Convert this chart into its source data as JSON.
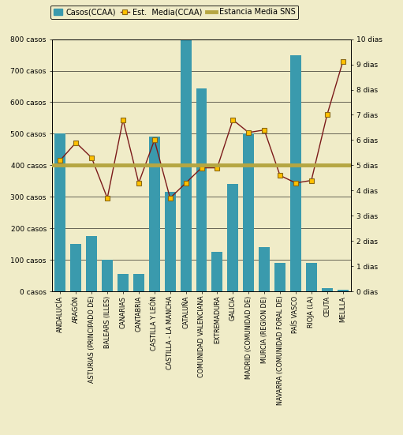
{
  "categories": [
    "ANDALUCÍA",
    "ARAGÓN",
    "ASTURIAS (PRINCIPADO DE)",
    "BALEARS (ILLES)",
    "CANARIAS",
    "CANTABRIA",
    "CASTILLA Y LEÓN",
    "CASTILLA - LA MANCHA",
    "CATALUÑA",
    "COMUNIDAD VALENCIANA",
    "EXTREMADURA",
    "GALICIA",
    "MADRID (COMUNIDAD DE)",
    "MURCIA (REGION DE)",
    "NAVARRA (COMUNIDAD FORAL DE)",
    "PAÍS VASCO",
    "RIOJA (LA)",
    "CEUTA",
    "MELILLA"
  ],
  "bar_values": [
    500,
    150,
    175,
    100,
    55,
    55,
    490,
    315,
    800,
    645,
    125,
    340,
    500,
    140,
    90,
    750,
    90,
    10,
    5
  ],
  "line_values": [
    5.2,
    5.9,
    5.3,
    3.7,
    6.8,
    4.3,
    6.0,
    3.7,
    4.3,
    4.9,
    4.9,
    6.8,
    6.3,
    6.4,
    4.6,
    4.3,
    4.4,
    7.0,
    9.1
  ],
  "sns_value": 5.0,
  "bar_color": "#3a9aad",
  "line_color": "#7b1a1a",
  "line_marker_color": "#ffc000",
  "line_marker_edge": "#8B6914",
  "sns_color": "#b5a642",
  "background_color": "#f0ecc8",
  "plot_bg_color": "#f0ecc8",
  "ylim_left": [
    0,
    800
  ],
  "ylim_right": [
    0,
    10
  ],
  "yticks_left": [
    0,
    100,
    200,
    300,
    400,
    500,
    600,
    700,
    800
  ],
  "yticks_right": [
    0,
    1,
    2,
    3,
    4,
    5,
    6,
    7,
    8,
    9,
    10
  ],
  "ytick_labels_left": [
    "0 casos",
    "100 casos",
    "200 casos",
    "300 casos",
    "400 casos",
    "500 casos",
    "600 casos",
    "700 casos",
    "800 casos"
  ],
  "ytick_labels_right": [
    "0 dias",
    "1 dias",
    "2 dias",
    "3 dias",
    "4 dias",
    "5 dias",
    "6 dias",
    "7 dias",
    "8 dias",
    "9 dias",
    "10 dias"
  ],
  "legend_bar_label": "Casos(CCAA)",
  "legend_line_label": "Est.  Media(CCAA)",
  "legend_sns_label": "Estancia Media SNS",
  "figsize": [
    5.11,
    5.51
  ],
  "dpi": 100
}
